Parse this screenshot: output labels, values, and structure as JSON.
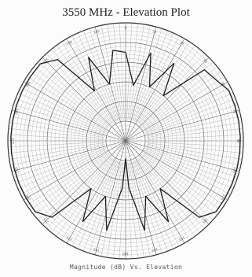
{
  "chart_data": {
    "type": "polar",
    "title": "3550 MHz - Elevation Plot",
    "caption": "Magnitude (dB) Vs. Elevation",
    "angle_unit": "degrees",
    "radial_unit": "dB",
    "radial_range": [
      -40,
      0
    ],
    "angle_tick_labels": [
      "0",
      "15",
      "30",
      "45",
      "60",
      "75",
      "90",
      "105",
      "120",
      "135",
      "150",
      "165",
      "180",
      "195",
      "210",
      "225",
      "240",
      "255",
      "270",
      "285",
      "300",
      "315",
      "330",
      "345"
    ],
    "series": [
      {
        "angles": [
          0,
          8,
          16,
          24,
          32,
          40,
          48,
          56,
          64,
          72,
          80,
          88,
          96,
          104,
          112,
          120,
          128,
          136,
          144,
          152,
          160,
          168,
          176,
          180,
          184,
          192,
          200,
          208,
          216,
          224,
          232,
          240,
          248,
          256,
          264,
          272,
          280,
          288,
          296,
          304,
          312,
          320,
          328,
          336,
          344,
          352
        ],
        "values": [
          -10,
          -21,
          -9,
          -20,
          -9,
          -20,
          -4,
          -3,
          -1,
          -1,
          -1,
          -1,
          -1,
          -1,
          -1,
          -1,
          -1,
          -4,
          -20,
          -9,
          -20,
          -9,
          -24,
          -34,
          -24,
          -9,
          -20,
          -9,
          -20,
          -4,
          -1,
          -1,
          -1,
          -1,
          -1,
          -1,
          -1,
          -1,
          -1,
          -1,
          -1,
          -4,
          -20,
          -9,
          -20,
          -9
        ]
      }
    ]
  }
}
